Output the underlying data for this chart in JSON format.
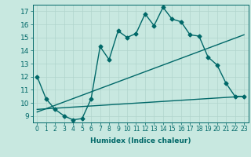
{
  "xlabel": "Humidex (Indice chaleur)",
  "bg_color": "#c8e8e0",
  "grid_color": "#b0d4cc",
  "line_color": "#006868",
  "xlim": [
    -0.5,
    23.5
  ],
  "ylim": [
    8.5,
    17.5
  ],
  "yticks": [
    9,
    10,
    11,
    12,
    13,
    14,
    15,
    16,
    17
  ],
  "xticks": [
    0,
    1,
    2,
    3,
    4,
    5,
    6,
    7,
    8,
    9,
    10,
    11,
    12,
    13,
    14,
    15,
    16,
    17,
    18,
    19,
    20,
    21,
    22,
    23
  ],
  "line1_x": [
    0,
    1,
    2,
    3,
    4,
    5,
    6,
    7,
    8,
    9,
    10,
    11,
    12,
    13,
    14,
    15,
    16,
    17,
    18,
    19,
    20,
    21,
    22,
    23
  ],
  "line1_y": [
    12.0,
    10.3,
    9.5,
    9.0,
    8.7,
    8.8,
    10.3,
    14.3,
    13.3,
    15.5,
    15.0,
    15.3,
    16.8,
    15.9,
    17.3,
    16.4,
    16.2,
    15.2,
    15.1,
    13.5,
    12.9,
    11.5,
    10.5,
    10.5
  ],
  "line2_x": [
    0,
    23
  ],
  "line2_y": [
    9.3,
    15.2
  ],
  "line3_x": [
    0,
    23
  ],
  "line3_y": [
    9.5,
    10.5
  ],
  "marker": "D",
  "marker_size": 2.5,
  "line_width": 1.0,
  "font_size": 6.5,
  "tick_font_size": 5.5
}
